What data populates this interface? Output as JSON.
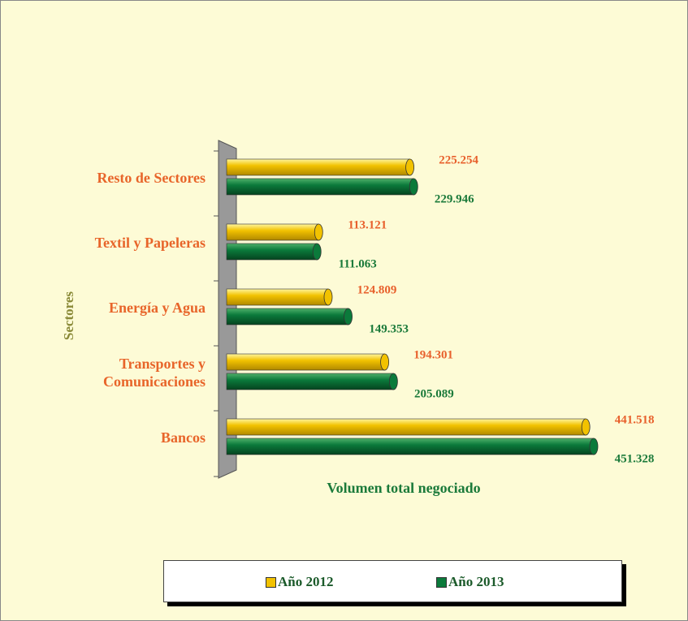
{
  "chart_data": {
    "type": "bar",
    "orientation": "horizontal",
    "xlabel": "Volumen total negociado",
    "ylabel": "Sectores",
    "categories": [
      "Resto de Sectores",
      "Textil y Papeleras",
      "Energía y Agua",
      "Transportes y\nComunicaciones",
      "Bancos"
    ],
    "series": [
      {
        "name": "Año 2012",
        "color": "#f2c200",
        "label_color": "#e8602c",
        "values": [
          225.254,
          113.121,
          124.809,
          194.301,
          441.518
        ]
      },
      {
        "name": "Año 2013",
        "color": "#0b7a3b",
        "label_color": "#1b7a3a",
        "values": [
          229.946,
          111.063,
          149.353,
          205.089,
          451.328
        ]
      }
    ],
    "legend": "bottom"
  }
}
